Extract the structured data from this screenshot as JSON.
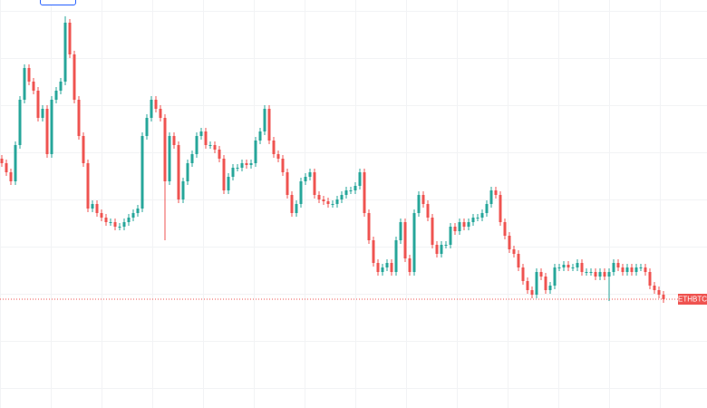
{
  "chart_data": {
    "type": "candlestick",
    "symbol": "ETHBTC",
    "up_color": "#26a69a",
    "down_color": "#ef5350",
    "ylim": [
      0,
      450
    ],
    "open": [
      275,
      270,
      260,
      250,
      290,
      340,
      375,
      360,
      350,
      320,
      330,
      280,
      340,
      350,
      360,
      425,
      390,
      340,
      300,
      270,
      220,
      225,
      215,
      210,
      205,
      205,
      200,
      200,
      205,
      210,
      215,
      220,
      300,
      320,
      340,
      330,
      320,
      250,
      300,
      290,
      230,
      250,
      270,
      280,
      300,
      305,
      290,
      290,
      285,
      275,
      240,
      255,
      265,
      265,
      270,
      268,
      270,
      295,
      305,
      330,
      295,
      280,
      275,
      260,
      235,
      215,
      225,
      250,
      255,
      260,
      235,
      230,
      228,
      225,
      225,
      230,
      235,
      240,
      240,
      245,
      260,
      215,
      185,
      160,
      150,
      155,
      160,
      150,
      185,
      205,
      165,
      150,
      215,
      235,
      225,
      210,
      180,
      170,
      180,
      180,
      200,
      195,
      205,
      200,
      205,
      210,
      210,
      215,
      225,
      240,
      235,
      205,
      190,
      175,
      170,
      155,
      140,
      130,
      125,
      150,
      145,
      130,
      135,
      155,
      155,
      158,
      155,
      155,
      160,
      150,
      150,
      150,
      145,
      150,
      145,
      150,
      160,
      155,
      150,
      155,
      150,
      155,
      155,
      150,
      135,
      130,
      125
    ],
    "high": [
      279,
      274,
      264,
      294,
      344,
      379,
      379,
      364,
      354,
      334,
      334,
      344,
      354,
      364,
      432,
      429,
      394,
      344,
      304,
      274,
      229,
      229,
      219,
      214,
      209,
      209,
      204,
      209,
      214,
      219,
      224,
      304,
      324,
      344,
      344,
      334,
      324,
      304,
      304,
      294,
      254,
      274,
      284,
      304,
      309,
      309,
      294,
      294,
      289,
      279,
      259,
      269,
      269,
      274,
      274,
      274,
      299,
      309,
      334,
      334,
      299,
      284,
      279,
      264,
      239,
      229,
      254,
      259,
      264,
      264,
      239,
      234,
      232,
      229,
      234,
      239,
      244,
      244,
      249,
      264,
      264,
      219,
      189,
      164,
      159,
      164,
      164,
      189,
      209,
      209,
      169,
      219,
      239,
      239,
      229,
      214,
      184,
      184,
      184,
      204,
      204,
      209,
      209,
      209,
      214,
      214,
      219,
      229,
      244,
      244,
      239,
      209,
      194,
      179,
      174,
      159,
      144,
      134,
      154,
      154,
      149,
      139,
      159,
      159,
      162,
      162,
      159,
      164,
      164,
      154,
      154,
      154,
      154,
      154,
      154,
      164,
      164,
      159,
      159,
      159,
      159,
      159,
      159,
      154,
      139,
      134,
      129
    ],
    "low": [
      266,
      256,
      246,
      246,
      286,
      336,
      356,
      346,
      316,
      316,
      276,
      276,
      336,
      346,
      356,
      386,
      336,
      296,
      266,
      216,
      216,
      211,
      206,
      201,
      201,
      196,
      196,
      196,
      201,
      206,
      211,
      216,
      296,
      316,
      326,
      316,
      185,
      246,
      286,
      226,
      226,
      246,
      266,
      276,
      296,
      286,
      286,
      281,
      271,
      236,
      236,
      251,
      261,
      261,
      264,
      264,
      266,
      291,
      301,
      291,
      276,
      271,
      256,
      231,
      211,
      211,
      221,
      246,
      251,
      231,
      226,
      224,
      221,
      221,
      221,
      226,
      231,
      236,
      236,
      241,
      211,
      181,
      156,
      146,
      146,
      151,
      146,
      146,
      181,
      161,
      146,
      146,
      211,
      221,
      206,
      176,
      166,
      166,
      176,
      176,
      191,
      191,
      196,
      196,
      201,
      206,
      206,
      211,
      221,
      231,
      201,
      186,
      171,
      166,
      151,
      136,
      126,
      121,
      121,
      141,
      126,
      126,
      131,
      151,
      151,
      151,
      151,
      151,
      146,
      146,
      146,
      141,
      141,
      141,
      118,
      146,
      151,
      146,
      146,
      146,
      146,
      151,
      146,
      131,
      126,
      121,
      116
    ],
    "close": [
      270,
      260,
      250,
      290,
      340,
      375,
      360,
      350,
      320,
      330,
      280,
      340,
      350,
      360,
      425,
      390,
      340,
      300,
      270,
      220,
      225,
      215,
      210,
      205,
      205,
      200,
      200,
      205,
      210,
      215,
      220,
      300,
      320,
      340,
      330,
      320,
      250,
      300,
      290,
      230,
      250,
      270,
      280,
      300,
      305,
      290,
      290,
      285,
      275,
      240,
      255,
      265,
      265,
      270,
      268,
      270,
      295,
      305,
      330,
      295,
      280,
      275,
      260,
      235,
      215,
      225,
      250,
      255,
      260,
      235,
      230,
      228,
      225,
      225,
      230,
      235,
      240,
      240,
      245,
      260,
      215,
      185,
      160,
      150,
      155,
      160,
      150,
      185,
      205,
      165,
      150,
      215,
      235,
      225,
      210,
      180,
      170,
      180,
      180,
      200,
      195,
      205,
      200,
      205,
      210,
      210,
      215,
      225,
      240,
      235,
      205,
      190,
      175,
      170,
      155,
      140,
      130,
      125,
      150,
      145,
      130,
      135,
      155,
      155,
      158,
      155,
      155,
      160,
      150,
      150,
      150,
      145,
      150,
      145,
      150,
      160,
      155,
      150,
      155,
      150,
      155,
      155,
      150,
      135,
      130,
      125,
      120
    ]
  }
}
